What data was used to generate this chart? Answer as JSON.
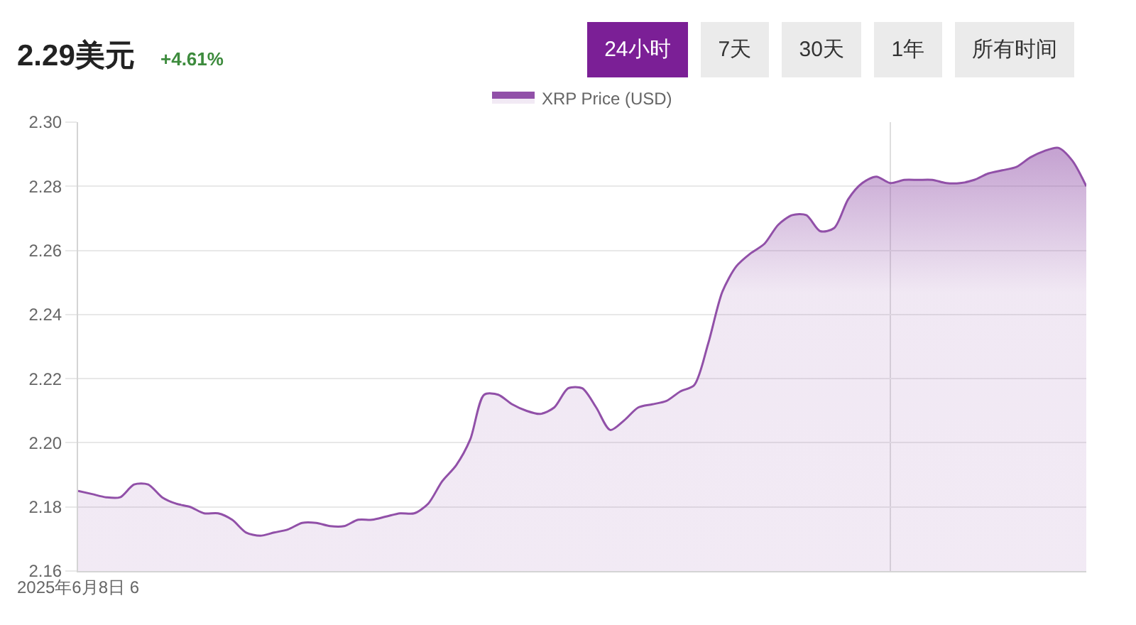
{
  "chart_data": {
    "type": "area",
    "title": "2.29美元",
    "subtitle": "+4.61%",
    "annotations": [
      "24小时",
      "7天",
      "30天",
      "1年",
      "所有时间"
    ],
    "categories": [
      "2025年6月8日 6",
      null,
      null,
      null,
      null,
      null,
      null,
      null,
      null,
      null,
      null,
      null,
      null,
      null,
      null,
      null,
      null,
      null,
      null,
      null,
      null,
      null,
      null,
      null,
      null,
      null,
      null,
      null,
      null,
      null,
      null,
      null,
      null,
      null,
      null,
      null,
      null,
      null,
      null,
      null,
      null,
      null,
      null,
      null,
      null,
      null,
      null,
      null,
      null,
      null,
      null,
      null,
      null,
      null,
      null,
      null,
      null,
      null,
      null,
      null,
      null,
      null,
      null,
      null,
      null,
      null,
      null,
      null,
      null,
      null,
      null,
      null,
      null
    ],
    "series": [
      {
        "name": "XRP Price (USD)",
        "color": "#9150a8",
        "values": [
          2.185,
          2.184,
          2.183,
          2.183,
          2.187,
          2.187,
          2.183,
          2.181,
          2.18,
          2.178,
          2.178,
          2.176,
          2.172,
          2.171,
          2.172,
          2.173,
          2.175,
          2.175,
          2.174,
          2.174,
          2.176,
          2.176,
          2.177,
          2.178,
          2.178,
          2.181,
          2.188,
          2.193,
          2.201,
          2.215,
          2.215,
          2.212,
          2.21,
          2.209,
          2.211,
          2.217,
          2.217,
          2.211,
          2.204,
          2.207,
          2.211,
          2.212,
          2.213,
          2.216,
          2.218,
          2.231,
          2.247,
          2.255,
          2.259,
          2.262,
          2.268,
          2.271,
          2.271,
          2.266,
          2.267,
          2.276,
          2.281,
          2.283,
          2.281,
          2.282,
          2.282,
          2.282,
          2.281,
          2.281,
          2.282,
          2.284,
          2.285,
          2.286,
          2.289,
          2.291,
          2.292,
          2.288,
          2.28
        ]
      }
    ],
    "ylim": [
      2.16,
      2.3
    ],
    "yticks": [
      2.16,
      2.18,
      {
        "value": 2.2,
        "label": "2.20"
      },
      2.22,
      2.24,
      2.26,
      2.28,
      {
        "value": 2.3,
        "label": "2.30"
      }
    ],
    "grid": "y",
    "legend": "top"
  }
}
